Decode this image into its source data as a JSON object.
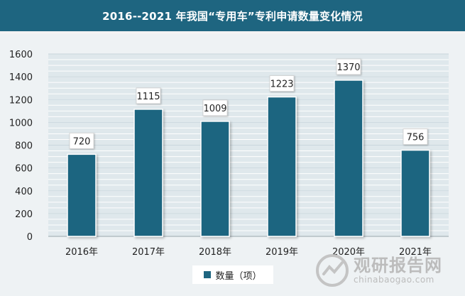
{
  "title": "2016--2021 年我国“专用车”专利申请数量变化情况",
  "legend": {
    "label": "数量（项）"
  },
  "watermark": {
    "cn": "观研报告网",
    "en": "chinabaogao.com"
  },
  "colors": {
    "bar": "#1e6580",
    "title_bg": "#1e6580",
    "grid": "#c9d6dd"
  },
  "chart_data": {
    "type": "bar",
    "title": "2016--2021 年我国“专用车”专利申请数量变化情况",
    "categories": [
      "2016年",
      "2017年",
      "2018年",
      "2019年",
      "2020年",
      "2021年"
    ],
    "series": [
      {
        "name": "数量（项）",
        "values": [
          720,
          1115,
          1009,
          1223,
          1370,
          756
        ]
      }
    ],
    "data_labels": [
      "720",
      "1115",
      "1009",
      "1223",
      "1370",
      "756"
    ],
    "ylim": [
      0,
      1600
    ],
    "yticks": [
      0,
      200,
      400,
      600,
      800,
      1000,
      1200,
      1400,
      1600
    ],
    "ytick_labels": [
      "0",
      "200",
      "400",
      "600",
      "800",
      "1000",
      "1200",
      "1400",
      "1600"
    ],
    "grid": true,
    "legend_position": "bottom"
  }
}
